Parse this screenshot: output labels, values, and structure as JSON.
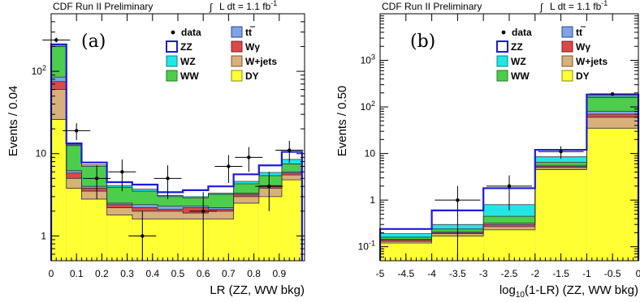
{
  "chart_data": [
    {
      "type": "bar",
      "panel_label": "(a)",
      "header_left": "CDF Run II Preliminary",
      "header_right": "L dt = 1.1 fb",
      "header_right_sup": "-1",
      "ylabel": "Events / 0.04",
      "xlabel": "LR (ZZ, WW bkg)",
      "log_y": true,
      "xlim": [
        0,
        1
      ],
      "ylim": [
        0.5,
        500
      ],
      "x_ticks": [
        "0",
        "0.1",
        "0.2",
        "0.3",
        "0.4",
        "0.5",
        "0.6",
        "0.7",
        "0.8",
        "0.9"
      ],
      "y_ticks": [
        "1",
        "10",
        "10^2"
      ],
      "bin_edges": [
        0,
        0.04,
        0.08,
        0.12,
        0.16,
        0.2,
        0.24,
        0.28,
        0.32,
        0.36,
        0.4,
        0.44,
        0.48,
        0.52,
        0.56,
        0.6,
        0.64,
        0.68,
        0.72,
        0.76,
        0.8,
        0.84,
        0.88,
        0.92,
        0.96,
        1.0
      ],
      "bins_used": [
        0.0,
        0.06,
        0.12,
        0.22,
        0.32,
        0.42,
        0.52,
        0.62,
        0.72,
        0.82,
        0.91,
        0.99
      ],
      "stack_order": [
        "DY",
        "W+jets",
        "Wγ",
        "tt",
        "WW",
        "WZ",
        "ZZ"
      ],
      "series": [
        {
          "name": "DY",
          "values": [
            26,
            3.8,
            2.8,
            1.8,
            1.6,
            1.6,
            1.6,
            1.6,
            2.5,
            3.0,
            4.8
          ]
        },
        {
          "name": "W+jets",
          "values": [
            60,
            5.0,
            3.5,
            2.2,
            2.0,
            2.0,
            1.9,
            2.0,
            3.0,
            3.8,
            5.5
          ]
        },
        {
          "name": "Wγ",
          "values": [
            75,
            5.8,
            3.8,
            2.4,
            2.2,
            2.1,
            2.2,
            2.1,
            3.2,
            4.0,
            5.8
          ]
        },
        {
          "name": "tt",
          "values": [
            85,
            6.2,
            4.0,
            2.5,
            2.4,
            2.3,
            2.3,
            2.2,
            3.3,
            4.1,
            6.0
          ]
        },
        {
          "name": "WW",
          "values": [
            200,
            12.5,
            7.0,
            3.9,
            3.5,
            3.0,
            2.9,
            3.2,
            4.3,
            5.4,
            7.5
          ]
        },
        {
          "name": "WZ",
          "values": [
            208,
            12.8,
            7.3,
            4.1,
            3.7,
            3.1,
            3.0,
            3.3,
            4.6,
            5.9,
            8.5
          ]
        },
        {
          "name": "ZZ",
          "values": [
            212,
            13.3,
            7.8,
            4.5,
            4.2,
            3.4,
            3.6,
            4.0,
            5.6,
            7.2,
            10.5
          ]
        }
      ],
      "data_points": [
        {
          "x": 0.02,
          "y": 240,
          "yerr": [
            16,
            16
          ]
        },
        {
          "x": 0.1,
          "y": 19,
          "yerr": [
            4.4,
            4.4
          ]
        },
        {
          "x": 0.18,
          "y": 5,
          "yerr": [
            2.2,
            2.2
          ]
        },
        {
          "x": 0.28,
          "y": 6,
          "yerr": [
            2.5,
            2.5
          ]
        },
        {
          "x": 0.36,
          "y": 1,
          "yerr": [
            1,
            1
          ]
        },
        {
          "x": 0.46,
          "y": 5,
          "yerr": [
            2.2,
            2.2
          ]
        },
        {
          "x": 0.6,
          "y": 2,
          "yerr": [
            1.4,
            1.4
          ]
        },
        {
          "x": 0.7,
          "y": 7,
          "yerr": [
            2.6,
            2.6
          ]
        },
        {
          "x": 0.78,
          "y": 9,
          "yerr": [
            3,
            3
          ]
        },
        {
          "x": 0.86,
          "y": 4,
          "yerr": [
            2,
            2
          ]
        },
        {
          "x": 0.94,
          "y": 11,
          "yerr": [
            3.3,
            3.3
          ]
        }
      ]
    },
    {
      "type": "bar",
      "panel_label": "(b)",
      "header_left": "CDF Run II Preliminary",
      "header_right": "L dt = 1.1 fb",
      "header_right_sup": "-1",
      "ylabel": "Events / 0.50",
      "xlabel_main": "log",
      "xlabel_sub": "10",
      "xlabel_rest": "(1-LR) (ZZ, WW bkg)",
      "log_y": true,
      "xlim": [
        -5,
        0
      ],
      "ylim": [
        0.05,
        10000
      ],
      "x_ticks": [
        "-5",
        "-4.5",
        "-4",
        "-3.5",
        "-3",
        "-2.5",
        "-2",
        "-1.5",
        "-1",
        "-0.5",
        "0"
      ],
      "y_ticks": [
        "10^-1",
        "1",
        "10",
        "10^2",
        "10^3"
      ],
      "bin_edges": [
        -5,
        -4,
        -3,
        -2,
        -1,
        0
      ],
      "stack_order": [
        "DY",
        "W+jets",
        "Wγ",
        "tt",
        "WW",
        "WZ",
        "ZZ"
      ],
      "series": [
        {
          "name": "DY",
          "values": [
            0.12,
            0.17,
            0.23,
            4.5,
            35
          ]
        },
        {
          "name": "W+jets",
          "values": [
            0.13,
            0.19,
            0.27,
            5.0,
            60
          ]
        },
        {
          "name": "Wγ",
          "values": [
            0.14,
            0.2,
            0.3,
            5.3,
            70
          ]
        },
        {
          "name": "tt",
          "values": [
            0.145,
            0.21,
            0.32,
            5.6,
            80
          ]
        },
        {
          "name": "WW",
          "values": [
            0.16,
            0.24,
            0.45,
            6.5,
            160
          ]
        },
        {
          "name": "WZ",
          "values": [
            0.19,
            0.3,
            0.8,
            8.5,
            170
          ]
        },
        {
          "name": "ZZ",
          "values": [
            0.24,
            0.6,
            1.8,
            12.0,
            185
          ]
        }
      ],
      "data_points": [
        {
          "x": -3.5,
          "y": 1,
          "yerr": [
            1,
            1
          ]
        },
        {
          "x": -2.5,
          "y": 2,
          "yerr": [
            1.4,
            1.4
          ]
        },
        {
          "x": -1.5,
          "y": 11,
          "yerr": [
            3.3,
            3.3
          ]
        },
        {
          "x": -0.5,
          "y": 190,
          "yerr": [
            14,
            14
          ]
        }
      ]
    }
  ],
  "legend": [
    {
      "label": "data",
      "kind": "data"
    },
    {
      "label": "tt",
      "kind": "box",
      "color": "#7fa3e5",
      "edge": "#2a4a9a",
      "bar": true
    },
    {
      "label": "ZZ",
      "kind": "box",
      "color": "#ffffff",
      "edge": "#1a1adb"
    },
    {
      "label": "Wγ",
      "kind": "box",
      "color": "#dd4848",
      "edge": "#7a2020"
    },
    {
      "label": "WZ",
      "kind": "box",
      "color": "#22e6e6",
      "edge": "#118080"
    },
    {
      "label": "W+jets",
      "kind": "box",
      "color": "#d8b07a",
      "edge": "#7a5a30"
    },
    {
      "label": "WW",
      "kind": "box",
      "color": "#4ccd4c",
      "edge": "#207a20"
    },
    {
      "label": "DY",
      "kind": "box",
      "color": "#ffff33",
      "edge": "#8a8a10"
    }
  ],
  "colors": {
    "DY": "#ffff33",
    "W+jets": "#d8b07a",
    "Wγ": "#dd4848",
    "tt": "#7fa3e5",
    "WW": "#4ccd4c",
    "WZ": "#22e6e6",
    "ZZ": "#1a1adb"
  }
}
